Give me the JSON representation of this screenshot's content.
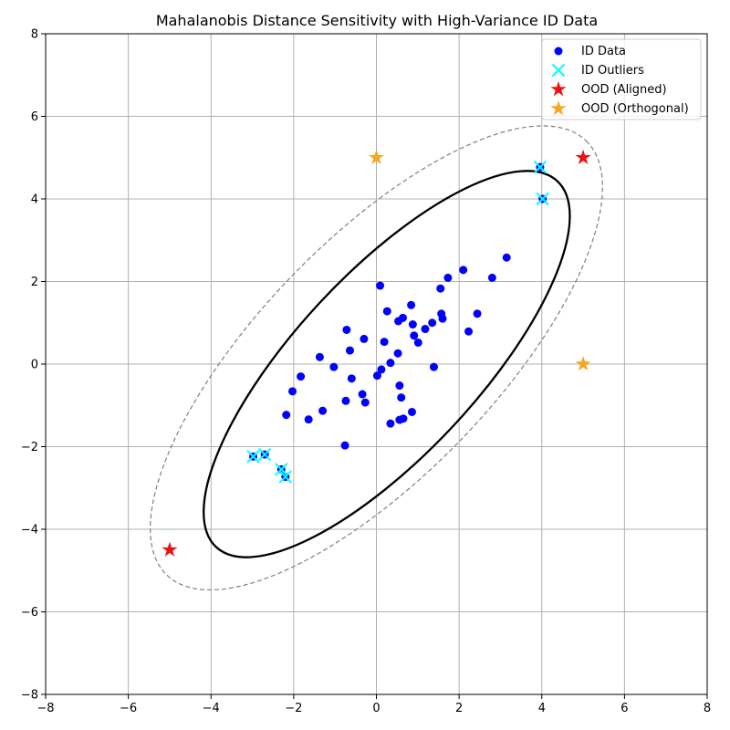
{
  "chart_data": {
    "type": "scatter",
    "title": "Mahalanobis Distance Sensitivity with High-Variance ID Data",
    "xlabel": "",
    "ylabel": "",
    "xlim": [
      -8,
      8
    ],
    "ylim": [
      -8,
      8
    ],
    "xticks": [
      -8,
      -6,
      -4,
      -2,
      0,
      2,
      4,
      6,
      8
    ],
    "yticks": [
      -8,
      -6,
      -4,
      -2,
      0,
      2,
      4,
      6,
      8
    ],
    "grid": true,
    "legend_position": "top-right",
    "colors": {
      "id_data": "#0000ff",
      "id_outliers": "#00ffff",
      "ood_aligned": "#ee1111",
      "ood_orthogonal": "#f5a623",
      "ellipse_inner": "#000000",
      "ellipse_outer": "#808080",
      "grid": "#b0b0b0"
    },
    "series": [
      {
        "name": "ID Data",
        "marker": "circle",
        "points": [
          [
            3.15,
            2.58
          ],
          [
            2.1,
            2.28
          ],
          [
            1.73,
            2.09
          ],
          [
            2.8,
            2.09
          ],
          [
            0.09,
            1.9
          ],
          [
            1.55,
            1.83
          ],
          [
            0.84,
            1.43
          ],
          [
            0.26,
            1.28
          ],
          [
            1.57,
            1.22
          ],
          [
            2.44,
            1.22
          ],
          [
            0.64,
            1.12
          ],
          [
            0.53,
            1.04
          ],
          [
            1.6,
            1.1
          ],
          [
            1.35,
            1.0
          ],
          [
            0.88,
            0.96
          ],
          [
            1.18,
            0.85
          ],
          [
            -0.72,
            0.83
          ],
          [
            2.23,
            0.79
          ],
          [
            0.91,
            0.69
          ],
          [
            -0.3,
            0.61
          ],
          [
            0.19,
            0.54
          ],
          [
            1.01,
            0.52
          ],
          [
            -0.64,
            0.33
          ],
          [
            0.52,
            0.26
          ],
          [
            -1.37,
            0.17
          ],
          [
            0.34,
            0.03
          ],
          [
            -1.03,
            -0.07
          ],
          [
            1.39,
            -0.07
          ],
          [
            0.12,
            -0.13
          ],
          [
            0.02,
            -0.28
          ],
          [
            -1.83,
            -0.3
          ],
          [
            -0.6,
            -0.35
          ],
          [
            0.56,
            -0.52
          ],
          [
            -2.03,
            -0.66
          ],
          [
            -0.34,
            -0.73
          ],
          [
            0.6,
            -0.81
          ],
          [
            -0.74,
            -0.89
          ],
          [
            -0.27,
            -0.93
          ],
          [
            -1.3,
            -1.13
          ],
          [
            0.86,
            -1.16
          ],
          [
            -2.18,
            -1.23
          ],
          [
            -1.64,
            -1.34
          ],
          [
            0.65,
            -1.32
          ],
          [
            0.56,
            -1.35
          ],
          [
            0.34,
            -1.44
          ],
          [
            -0.76,
            -1.97
          ],
          [
            3.96,
            4.77
          ],
          [
            4.02,
            4.0
          ],
          [
            -2.98,
            -2.24
          ],
          [
            -2.7,
            -2.19
          ],
          [
            -2.3,
            -2.55
          ],
          [
            -2.2,
            -2.73
          ]
        ]
      },
      {
        "name": "ID Outliers",
        "marker": "x",
        "points": [
          [
            3.96,
            4.77
          ],
          [
            4.02,
            4.0
          ],
          [
            -2.98,
            -2.24
          ],
          [
            -2.7,
            -2.19
          ],
          [
            -2.3,
            -2.55
          ],
          [
            -2.2,
            -2.73
          ]
        ]
      },
      {
        "name": "OOD (Aligned)",
        "marker": "star",
        "points": [
          [
            5.0,
            5.0
          ],
          [
            -5.0,
            -4.5
          ]
        ]
      },
      {
        "name": "OOD (Orthogonal)",
        "marker": "star",
        "points": [
          [
            0.0,
            5.0
          ],
          [
            5.0,
            0.0
          ]
        ]
      }
    ],
    "ellipses": [
      {
        "name": "inner-ellipse",
        "style": "solid",
        "center": [
          0.25,
          0.0
        ],
        "semi_major": 6.05,
        "semi_minor": 2.2,
        "angle_deg": 47
      },
      {
        "name": "outer-ellipse",
        "style": "dashed",
        "center": [
          0.0,
          0.15
        ],
        "semi_major": 7.3,
        "semi_minor": 2.85,
        "angle_deg": 46
      }
    ]
  }
}
